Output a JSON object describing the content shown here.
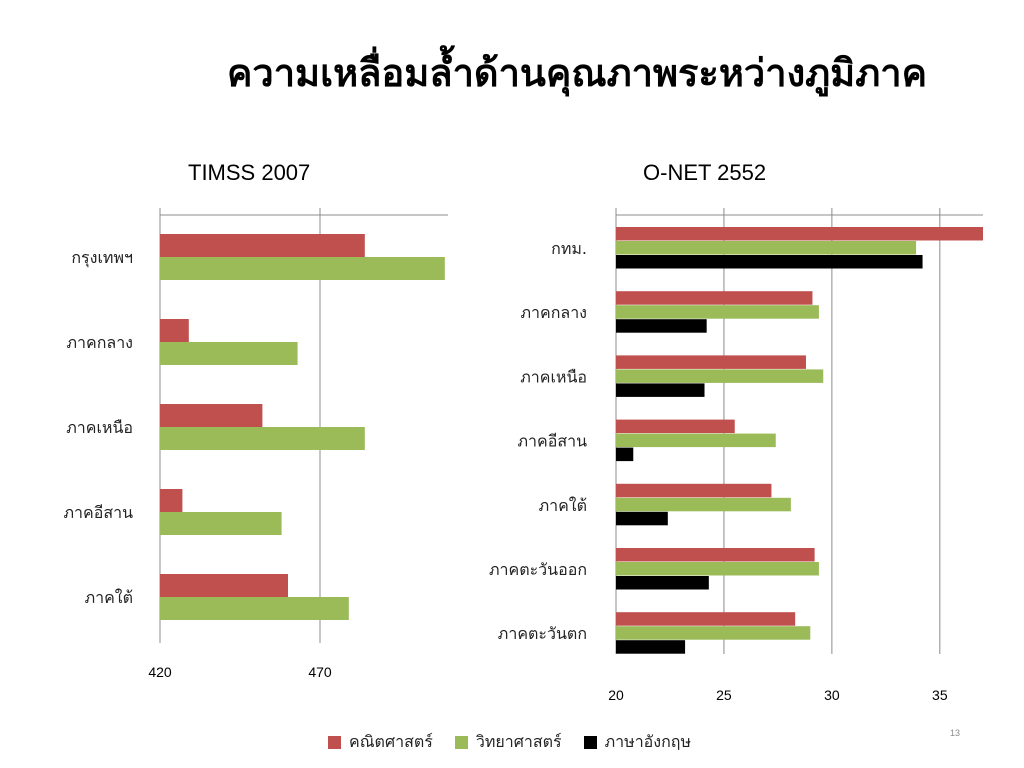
{
  "slide": {
    "title": "ความเหลื่อมล้ำด้านคุณภาพระหว่างภูมิภาค",
    "page_number": "13"
  },
  "colors": {
    "math": "#C0504D",
    "science": "#9BBB59",
    "english": "#000000",
    "grid": "#8c8c8c"
  },
  "legend": [
    {
      "key": "math",
      "label": "คณิตศาสตร์",
      "color": "#C0504D"
    },
    {
      "key": "science",
      "label": "วิทยาศาสตร์",
      "color": "#9BBB59"
    },
    {
      "key": "english",
      "label": "ภาษาอังกฤษ",
      "color": "#000000"
    }
  ],
  "chart_data": [
    {
      "type": "bar",
      "orientation": "horizontal",
      "title": "TIMSS 2007",
      "categories": [
        "กรุงเทพฯ",
        "ภาคกลาง",
        "ภาคเหนือ",
        "ภาคอีสาน",
        "ภาคใต้"
      ],
      "series": [
        {
          "name": "คณิตศาสตร์",
          "key": "math",
          "values": [
            484,
            429,
            452,
            427,
            460
          ]
        },
        {
          "name": "วิทยาศาสตร์",
          "key": "science",
          "values": [
            509,
            463,
            484,
            458,
            479
          ]
        }
      ],
      "xlim": [
        420,
        510
      ],
      "xticks": [
        420,
        470
      ],
      "grid": true
    },
    {
      "type": "bar",
      "orientation": "horizontal",
      "title": "O-NET 2552",
      "categories": [
        "กทม.",
        "ภาคกลาง",
        "ภาคเหนือ",
        "ภาคอีสาน",
        "ภาคใต้",
        "ภาคตะวันออก",
        "ภาคตะวันตก"
      ],
      "series": [
        {
          "name": "คณิตศาสตร์",
          "key": "math",
          "values": [
            37.0,
            29.1,
            28.8,
            25.5,
            27.2,
            29.2,
            28.3
          ]
        },
        {
          "name": "วิทยาศาสตร์",
          "key": "science",
          "values": [
            33.9,
            29.4,
            29.6,
            27.4,
            28.1,
            29.4,
            29.0
          ]
        },
        {
          "name": "ภาษาอังกฤษ",
          "key": "english",
          "values": [
            34.2,
            24.2,
            24.1,
            20.8,
            22.4,
            24.3,
            23.2
          ]
        }
      ],
      "xlim": [
        20,
        37
      ],
      "xticks": [
        20,
        25,
        30,
        35
      ],
      "grid": true
    }
  ]
}
